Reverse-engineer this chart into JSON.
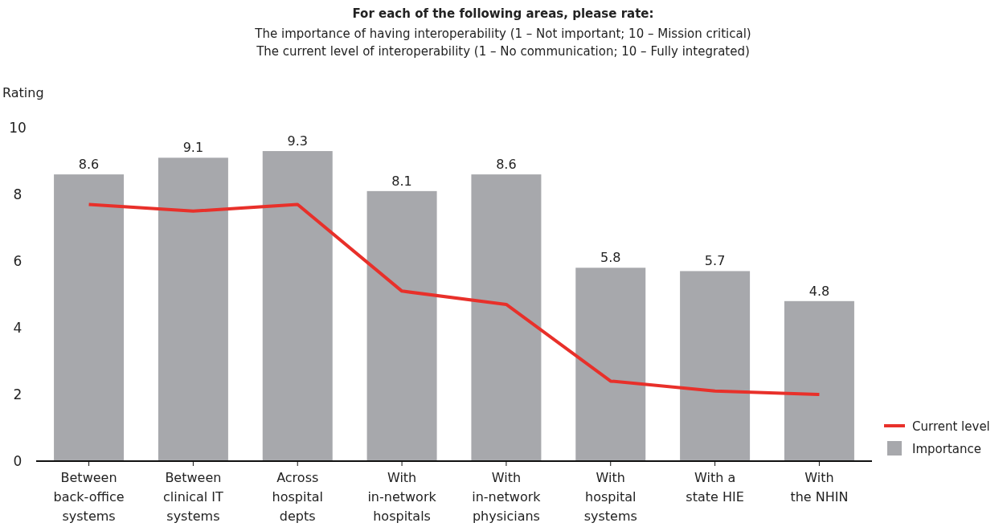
{
  "chart_data": {
    "type": "bar",
    "title": "For each of the following areas, please rate:",
    "subtitle": "The importance of having interoperability (1 – Not important; 10 – Mission critical)\nThe current level of interoperability (1 – No communication; 10 – Fully integrated)",
    "ylabel": "Rating",
    "categories": [
      "Between\nback-office\nsystems",
      "Between\nclinical IT\nsystems",
      "Across\nhospital\ndepts",
      "With\nin-network\nhospitals",
      "With\nin-network\nphysicians",
      "With\nhospital\nsystems",
      "With a\nstate HIE",
      "With\nthe NHIN"
    ],
    "series": [
      {
        "name": "Current level",
        "type": "line",
        "color": "#e8302a",
        "values": [
          7.7,
          7.5,
          7.7,
          5.1,
          4.7,
          2.4,
          2.1,
          2.0
        ]
      },
      {
        "name": "Importance",
        "color": "#a7a8ac",
        "values": [
          8.6,
          9.1,
          9.3,
          8.1,
          8.6,
          5.8,
          5.7,
          4.8
        ],
        "value_labels": [
          "8.6",
          "9.1",
          "9.3",
          "8.1",
          "8.6",
          "5.8",
          "5.7",
          "4.8"
        ]
      }
    ],
    "ylim": [
      0,
      10
    ],
    "yticks": [
      0,
      2,
      4,
      6,
      8,
      10
    ],
    "legend": "bottom right",
    "marker": "none",
    "line_style": "solid"
  }
}
